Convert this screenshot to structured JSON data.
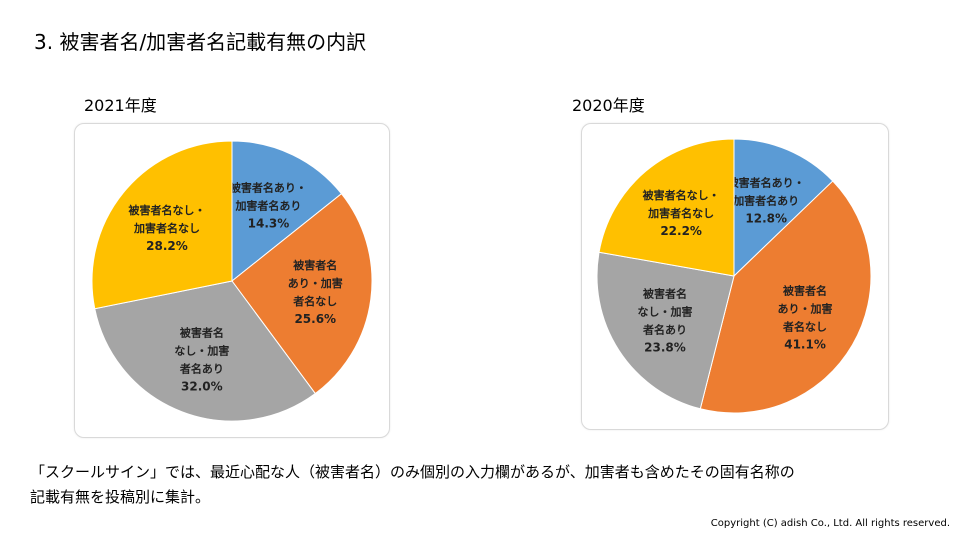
{
  "slide": {
    "title": "3. 被害者名/加害者名記載有無の内訳",
    "note_line1": "「スクールサイン」では、最近心配な人（被害者名）のみ個別の入力欄があるが、加害者も含めたその固有名称の",
    "note_line2": "記載有無を投稿別に集計。",
    "copyright": "Copyright (C) adish Co., Ltd. All rights reserved."
  },
  "chart_data": [
    {
      "type": "pie",
      "title": "2021年度",
      "slices": [
        {
          "label_lines": [
            "被害者名あり・",
            "加害者名あり"
          ],
          "pct_label": "14.3%",
          "value": 14.3,
          "color": "#5b9bd5"
        },
        {
          "label_lines": [
            "被害者名",
            "あり・加害",
            "者名なし"
          ],
          "pct_label": "25.6%",
          "value": 25.6,
          "color": "#ed7d31"
        },
        {
          "label_lines": [
            "被害者名",
            "なし・加害",
            "者名あり"
          ],
          "pct_label": "32.0%",
          "value": 32.0,
          "color": "#a5a5a5"
        },
        {
          "label_lines": [
            "被害者名なし・",
            "加害者名なし"
          ],
          "pct_label": "28.2%",
          "value": 28.2,
          "color": "#ffc000"
        }
      ]
    },
    {
      "type": "pie",
      "title": "2020年度",
      "slices": [
        {
          "label_lines": [
            "被害者名あり・",
            "加害者名あり"
          ],
          "pct_label": "12.8%",
          "value": 12.8,
          "color": "#5b9bd5"
        },
        {
          "label_lines": [
            "被害者名",
            "あり・加害",
            "者名なし"
          ],
          "pct_label": "41.1%",
          "value": 41.1,
          "color": "#ed7d31"
        },
        {
          "label_lines": [
            "被害者名",
            "なし・加害",
            "者名あり"
          ],
          "pct_label": "23.8%",
          "value": 23.8,
          "color": "#a5a5a5"
        },
        {
          "label_lines": [
            "被害者名なし・",
            "加害者名なし"
          ],
          "pct_label": "22.2%",
          "value": 22.2,
          "color": "#ffc000"
        }
      ]
    }
  ]
}
